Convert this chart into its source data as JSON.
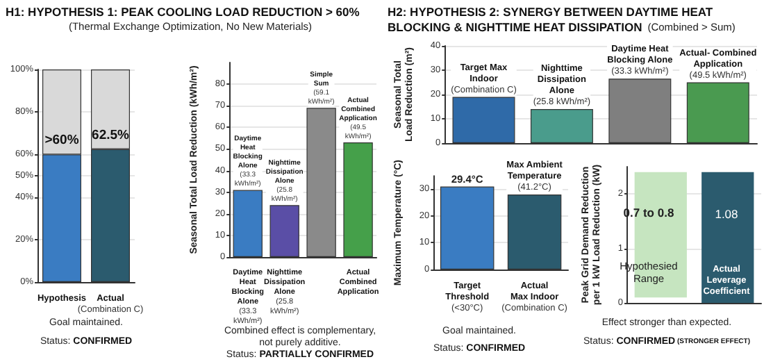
{
  "chart_data": [
    {
      "type": "bar",
      "title": "H1: HYPOTHESIS 1: PEAK COOLING LOAD REDUCTION > 60%",
      "subtitle": "(Thermal Exchange Optimization, No New Materials)",
      "categories": [
        "Hypothesis",
        "Actual\n(Combination C)"
      ],
      "stacked": true,
      "series": [
        {
          "colors": [
            "#3a7cc2",
            "#2b5b6e"
          ],
          "values": [
            60,
            62.5
          ],
          "value_labels": [
            ">60%",
            "62.5%"
          ]
        },
        {
          "color": "#d9d9d9",
          "values": [
            40,
            37.5
          ]
        }
      ],
      "ylim": [
        0,
        100
      ],
      "yticks": [
        {
          "value": 0,
          "label": "0%"
        },
        {
          "value": 20,
          "label": "20%"
        },
        {
          "value": 40,
          "label": "40%"
        },
        {
          "value": 50,
          "label": "50%"
        },
        {
          "value": 60,
          "label": "60%"
        },
        {
          "value": 80,
          "label": "80%"
        },
        {
          "value": 100,
          "label": "100%"
        }
      ],
      "grid": "y",
      "annotations": [
        "Goal maintained.",
        "Status: CONFIRMED"
      ]
    },
    {
      "type": "bar",
      "ylabel": "Seasonal Total Load Reduction (kWh/m²)",
      "categories": [
        "Daytime\nHeat\nBlocking\nAlone\n(33.3\nkWh/m²)",
        "Nighttime\nDissipation\nAlone\n(25.8\nkWh/m²)",
        null,
        "Actual\nCombined\nApplication"
      ],
      "values": [
        31,
        24,
        69,
        53
      ],
      "colors": [
        "#3a7cc2",
        "#5a4ea6",
        "#8a8a8a",
        "#45a04a"
      ],
      "ylim": [
        0,
        90
      ],
      "yticks": [
        0,
        10,
        20,
        30,
        40,
        50,
        60,
        70,
        80
      ],
      "grid": "y",
      "annotations": [
        {
          "text": "Daytime\nHeat\nBlocking\nAlone\n(33.3\nkWh/m²)",
          "x": "Daytime\nHeat\nBlocking\nAlone\n(33.3\nkWh/m²)",
          "y": 31
        },
        {
          "text": "Nighttime\nDissipation\nAlone\n(25.8\nkWh/m²)",
          "x": "Nighttime\nDissipation\nAlone\n(25.8\nkWh/m²)",
          "y": 24
        },
        "Simple\nSum\n(59.1\nkWh/m²)",
        {
          "text": "Actual\nCombined\nApplication\n(49.5\nkWh/m²)",
          "x": "Actual\nCombined\nApplication",
          "y": 53
        },
        "Combined effect is complementary,\nnot purely additive.",
        "Status: PARTIALLY CONFIRMED"
      ]
    },
    {
      "type": "bar",
      "title": "H2: HYPOTHESIS 2: SYNERGY BETWEEN DAYTIME HEAT BLOCKING & NIGHTTIME HEAT DISSIPATION",
      "subtitle": "(Combined > Sum)",
      "ylabel": "Seasonal Total\nLoad Reduction (m²)",
      "categories": [
        null,
        null,
        null,
        null
      ],
      "values": [
        19,
        14,
        26.5,
        25
      ],
      "colors": [
        "#2f6aa8",
        "#4a9c8c",
        "#7f7f7f",
        "#4a9a50"
      ],
      "ylim": [
        0,
        40
      ],
      "yticks": [
        0,
        10,
        20,
        30,
        40
      ],
      "grid": "y",
      "tick_labels": "y",
      "annotations": [
        "Target Max\nIndoor\n(Combination C)",
        "Nighttime\nDissipation\nAlone\n(25.8 kWh/m²)",
        "Daytime Heat\nBlocking Alone\n(33.3 kWh/m²)",
        "Actual- Combined\nApplication\n(49.5 kWh/m²)"
      ]
    },
    {
      "type": "bar",
      "ylabel": "Maximum Temperature (°C)",
      "categories": [
        "Target\nThreshold\n(<30°C)",
        "Actual\nMax Indoor\n(Combination C)"
      ],
      "values": [
        31,
        28
      ],
      "colors": [
        "#3a7cc2",
        "#2b5b6e"
      ],
      "ylim": [
        0,
        35
      ],
      "yticks": [
        0,
        10,
        20,
        30
      ],
      "grid": "y",
      "annotations": [
        {
          "text": "29.4°C",
          "x": "Target\nThreshold\n(<30°C)",
          "y": 31
        },
        {
          "text": "Max Ambient\nTemperature\n(41.2°C)",
          "x": "Actual\nMax Indoor\n(Combination C)",
          "y": 28
        },
        "Goal maintained.",
        "Status: CONFIRMED"
      ]
    },
    {
      "type": "bar",
      "ylabel": "Peak Grid Demand Reduction\nper 1 kW Load Reduction (kW)",
      "categories": [
        null,
        null
      ],
      "values": [
        2.3,
        2.4
      ],
      "base": [
        0.1,
        0
      ],
      "colors": [
        "#c6e5c0",
        "#2b5b6e"
      ],
      "ylim": [
        0,
        2.5
      ],
      "yticks": [
        0,
        1,
        2
      ],
      "grid": "y",
      "tick_labels": "y",
      "annotations": [
        "0.7 to 0.8",
        "Hypothesied\nRange",
        "1.08",
        "Actual\nLeverage\nCoefficient",
        "Effect stronger than expected.",
        "Status: CONFIRMED (STRONGER EFFECT)"
      ]
    }
  ]
}
